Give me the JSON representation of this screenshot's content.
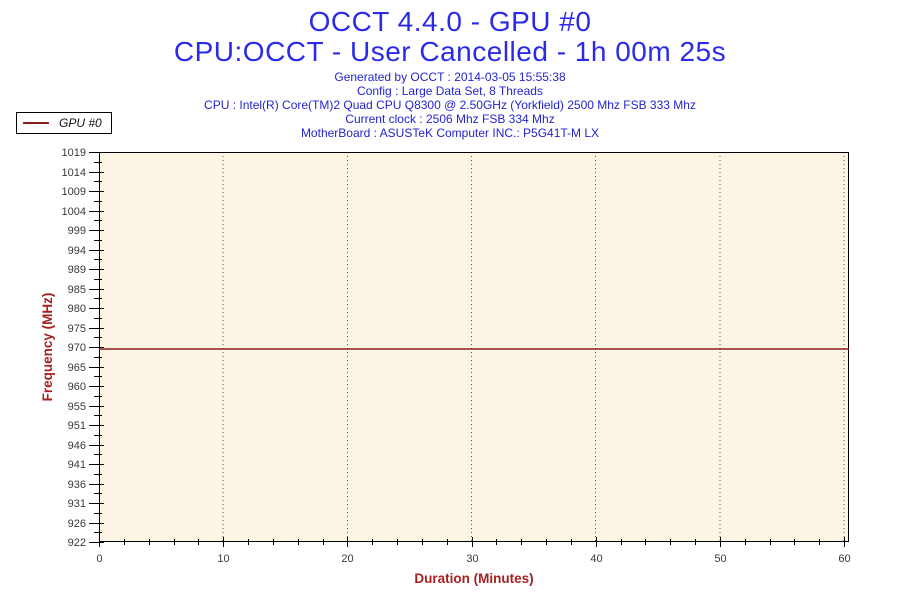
{
  "header": {
    "title": "OCCT 4.4.0 - GPU #0",
    "subtitle": "CPU:OCCT - User Cancelled - 1h 00m 25s",
    "info_lines": [
      "Generated by OCCT : 2014-03-05 15:55:38",
      "Config : Large Data Set, 8 Threads",
      "CPU : Intel(R) Core(TM)2 Quad CPU Q8300 @ 2.50GHz (Yorkfield) 2500 Mhz FSB 333 Mhz",
      "Current clock : 2506 Mhz FSB 334 Mhz",
      "MotherBoard : ASUSTeK Computer INC.: P5G41T-M LX"
    ]
  },
  "legend": {
    "label": "GPU #0",
    "line_color": "#8E1F1F"
  },
  "colors": {
    "title_blue": "#2A2AE8",
    "info_blue": "#2424CF",
    "axis_title_red": "#A42222",
    "tick_label_gray": "#3A3A3A",
    "frame_black": "#000000",
    "gridline_gray": "#555555",
    "plot_background": "#FCF5E4"
  },
  "chart_data": {
    "type": "line",
    "title": "OCCT 4.4.0 - GPU #0",
    "xlabel": "Duration (Minutes)",
    "ylabel": "Frequency (MHz)",
    "xlim": [
      0,
      60.4
    ],
    "ylim": [
      922,
      1019
    ],
    "x_major_ticks": [
      0,
      10,
      20,
      30,
      40,
      50,
      60
    ],
    "x_minor_step": 2,
    "y_major_tick_labels": [
      1019,
      1014,
      1009,
      1004,
      999,
      994,
      989,
      985,
      980,
      975,
      970,
      965,
      960,
      955,
      951,
      946,
      941,
      936,
      931,
      926,
      922
    ],
    "grid": {
      "vertical_dotted_at": [
        10,
        20,
        30,
        40,
        50,
        60
      ],
      "horizontal": false
    },
    "legend_position": "top-left-outside",
    "plot_background": "#FCF5E4",
    "series": [
      {
        "name": "GPU #0",
        "color": "#8E1F1F",
        "x": [
          0,
          60.4
        ],
        "y": [
          970,
          970
        ]
      }
    ]
  }
}
